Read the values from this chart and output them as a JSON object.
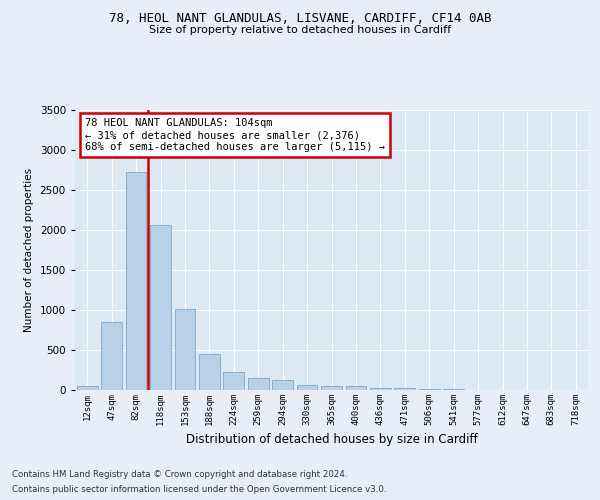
{
  "title1": "78, HEOL NANT GLANDULAS, LISVANE, CARDIFF, CF14 0AB",
  "title2": "Size of property relative to detached houses in Cardiff",
  "xlabel": "Distribution of detached houses by size in Cardiff",
  "ylabel": "Number of detached properties",
  "categories": [
    "12sqm",
    "47sqm",
    "82sqm",
    "118sqm",
    "153sqm",
    "188sqm",
    "224sqm",
    "259sqm",
    "294sqm",
    "330sqm",
    "365sqm",
    "400sqm",
    "436sqm",
    "471sqm",
    "506sqm",
    "541sqm",
    "577sqm",
    "612sqm",
    "647sqm",
    "683sqm",
    "718sqm"
  ],
  "values": [
    55,
    850,
    2720,
    2060,
    1010,
    455,
    230,
    145,
    130,
    60,
    50,
    45,
    30,
    25,
    15,
    8,
    5,
    2,
    1,
    1,
    1
  ],
  "bar_color": "#b8d0e8",
  "bar_edge_color": "#7aaac8",
  "vline_color": "#cc0000",
  "vline_pos": 2.5,
  "annotation_text": "78 HEOL NANT GLANDULAS: 104sqm\n← 31% of detached houses are smaller (2,376)\n68% of semi-detached houses are larger (5,115) →",
  "annotation_border_color": "#cc0000",
  "footer1": "Contains HM Land Registry data © Crown copyright and database right 2024.",
  "footer2": "Contains public sector information licensed under the Open Government Licence v3.0.",
  "ylim": [
    0,
    3500
  ],
  "yticks": [
    0,
    500,
    1000,
    1500,
    2000,
    2500,
    3000,
    3500
  ],
  "background_color": "#e8eef8",
  "plot_bg_color": "#dde8f5"
}
